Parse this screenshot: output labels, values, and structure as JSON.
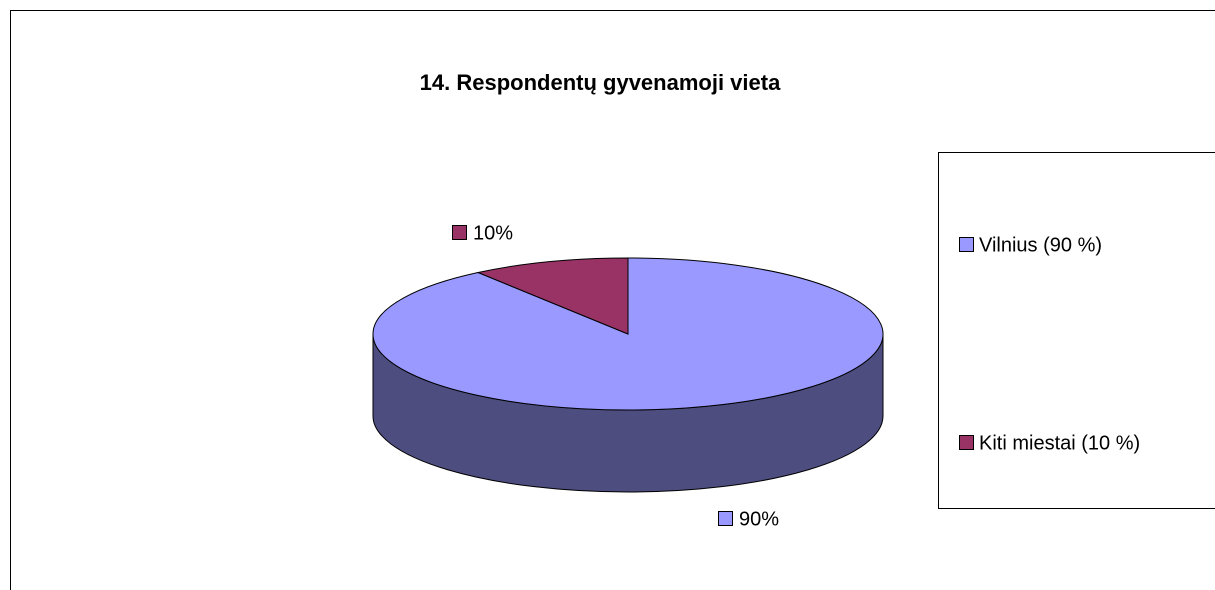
{
  "chart_data": {
    "type": "pie3d",
    "title": "14. Respondentų gyvenamoji vieta",
    "categories": [
      "Vilnius (90 %)",
      "Kiti miestai (10 %)"
    ],
    "values": [
      90,
      10
    ],
    "value_labels": [
      "90%",
      "10%"
    ],
    "colors": [
      "#9999ff",
      "#993366"
    ],
    "side_colors": [
      "#4d4d80",
      "#4d1a33"
    ],
    "legend": "right"
  }
}
